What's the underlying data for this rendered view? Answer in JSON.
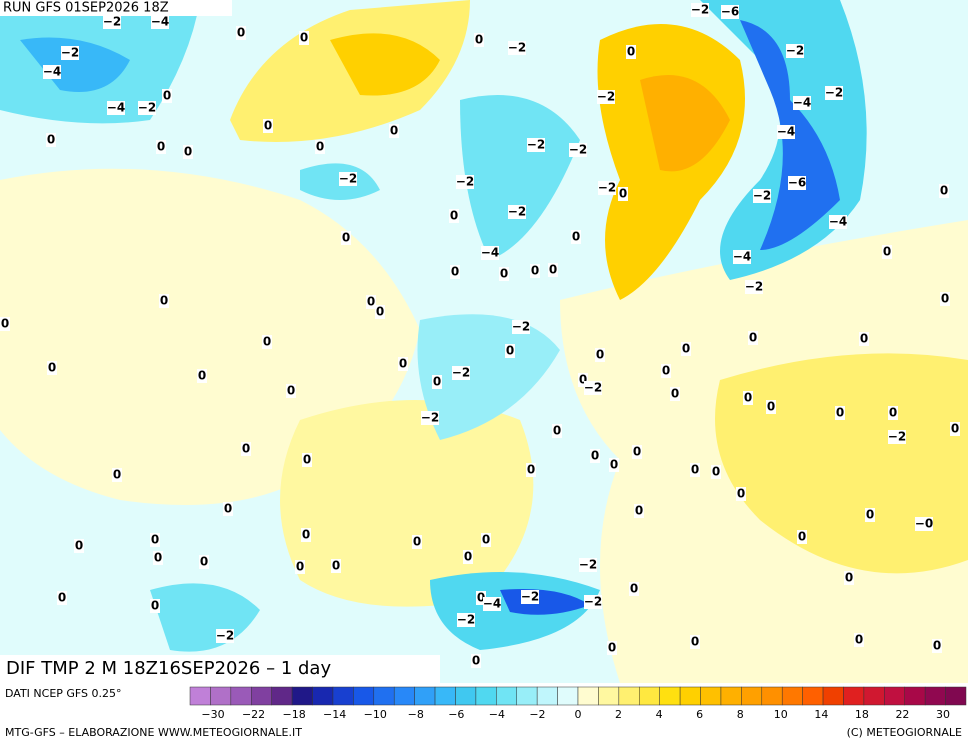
{
  "header": {
    "run": "RUN GFS 01SEP2026 18Z"
  },
  "map": {
    "title": "DIF TMP 2 M 18Z16SEP2026 – 1 day",
    "contour_labels": [
      "−2",
      "−4",
      "0",
      "0",
      "−2",
      "−4",
      "−4",
      "−2",
      "0",
      "0",
      "0",
      "0",
      "0",
      "0",
      "0",
      "0",
      "−2",
      "−2",
      "−6",
      "0",
      "−2",
      "−2",
      "−4",
      "−2",
      "−4",
      "−2",
      "−2",
      "−2",
      "−2",
      "−2",
      "0",
      "−2",
      "−6",
      "0",
      "−2",
      "0",
      "0",
      "0",
      "−4",
      "−4",
      "0",
      "0",
      "0",
      "0",
      "0",
      "−4",
      "−2",
      "0",
      "0",
      "0",
      "0",
      "0",
      "−2",
      "0",
      "0",
      "0",
      "0",
      "0",
      "0",
      "0",
      "0",
      "−2",
      "0",
      "0",
      "0",
      "0",
      "0",
      "−2",
      "0",
      "0",
      "0",
      "−2",
      "0",
      "0",
      "−2",
      "0",
      "0",
      "0",
      "0",
      "0",
      "0",
      "0",
      "0",
      "0",
      "0",
      "0",
      "0",
      "0",
      "0",
      "0",
      "−0",
      "0",
      "0",
      "0",
      "0",
      "0",
      "0",
      "0",
      "0",
      "−2",
      "0",
      "0",
      "0",
      "0",
      "0",
      "0",
      "0",
      "−4",
      "−2",
      "−2",
      "0",
      "−2",
      "−2",
      "0",
      "0",
      "0",
      "0",
      "0"
    ]
  },
  "colorbar": {
    "source": "DATI NCEP GFS 0.25°",
    "colors": [
      "#c080d8",
      "#b070c8",
      "#9a5ab8",
      "#8040a0",
      "#602888",
      "#201888",
      "#1828b0",
      "#1840d0",
      "#1858e8",
      "#2070f0",
      "#2888f8",
      "#30a0f8",
      "#38b8f8",
      "#40c8f0",
      "#50d8f0",
      "#70e4f4",
      "#98eef8",
      "#c0f6fc",
      "#e0fcfc",
      "#fffcd0",
      "#fff8a0",
      "#fff070",
      "#ffe840",
      "#ffe010",
      "#ffd000",
      "#ffc000",
      "#ffb000",
      "#ffa000",
      "#ff9000",
      "#ff7800",
      "#ff6000",
      "#f04000",
      "#e02020",
      "#d01830",
      "#c01040",
      "#a80848",
      "#900850",
      "#800850"
    ],
    "ticks": [
      "−30",
      "−22",
      "−18",
      "−14",
      "−10",
      "−8",
      "−6",
      "−4",
      "−2",
      "0",
      "2",
      "4",
      "6",
      "8",
      "10",
      "14",
      "18",
      "22",
      "30"
    ]
  },
  "footer": {
    "left": "MTG-GFS – ELABORAZIONE WWW.METEOGIORNALE.IT",
    "right": "(C) METEOGIORNALE"
  }
}
